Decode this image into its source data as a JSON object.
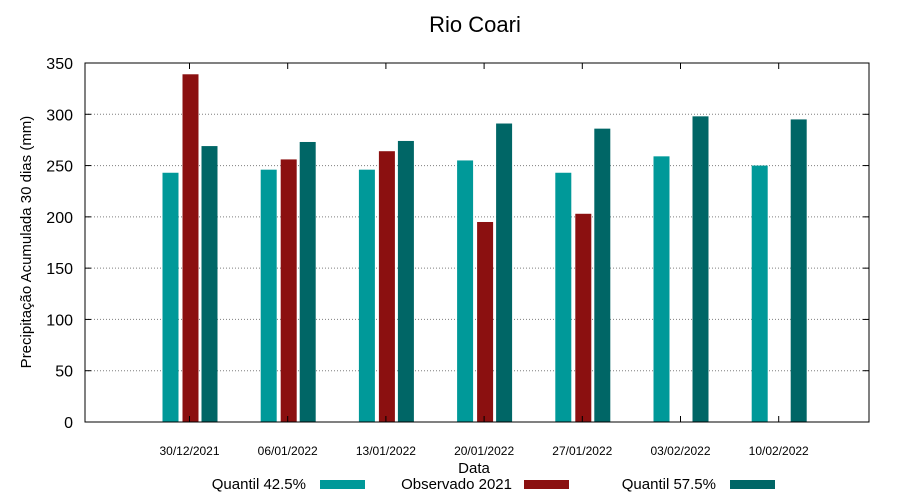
{
  "chart_data": {
    "type": "bar",
    "title": "Rio Coari",
    "xlabel": "Data",
    "ylabel": "Precipitação Acumulada 30 dias (mm)",
    "ylim": [
      0,
      350
    ],
    "yticks": [
      0,
      50,
      100,
      150,
      200,
      250,
      300,
      350
    ],
    "grid": "horizontal dotted",
    "legend_placement": "bottom",
    "categories": [
      "30/12/2021",
      "06/01/2022",
      "13/01/2022",
      "20/01/2022",
      "27/01/2022",
      "03/02/2022",
      "10/02/2022"
    ],
    "series": [
      {
        "name": "Quantil 42.5%",
        "color": "#009999",
        "values": [
          243,
          246,
          246,
          255,
          243,
          259,
          250
        ]
      },
      {
        "name": "Observado 2021",
        "color": "#8b1010",
        "values": [
          339,
          256,
          264,
          195,
          203,
          null,
          null
        ]
      },
      {
        "name": "Quantil 57.5%",
        "color": "#006666",
        "values": [
          269,
          273,
          274,
          291,
          286,
          298,
          295
        ]
      }
    ]
  }
}
